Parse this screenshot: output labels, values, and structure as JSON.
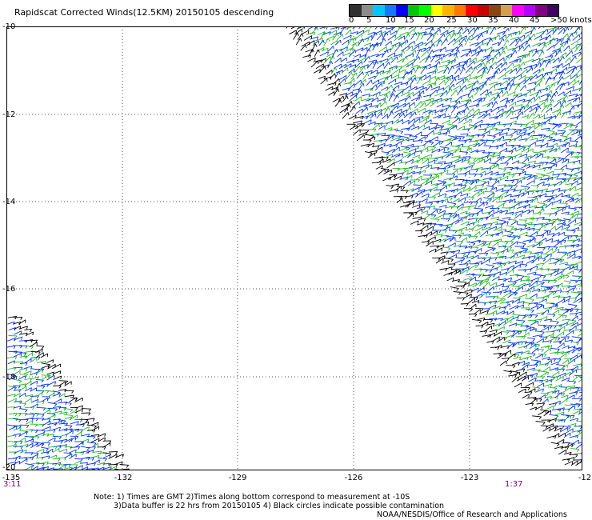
{
  "title": "Rapidscat Corrected Winds(12.5KM) 20150105 descending",
  "colorbar": {
    "colors": [
      "#303030",
      "#8c8c8c",
      "#00c8ff",
      "#1478ff",
      "#0000ff",
      "#00c800",
      "#00ff00",
      "#ffff00",
      "#ffb400",
      "#ff7800",
      "#ff0000",
      "#c80000",
      "#8b4513",
      "#d2a050",
      "#ff00ff",
      "#b400ff",
      "#800080",
      "#400060"
    ],
    "labels": [
      "0",
      "5",
      "10",
      "15",
      "20",
      "25",
      "30",
      "35",
      "40",
      "45",
      ">50 knots"
    ]
  },
  "lat_labels": [
    "-10",
    "-12",
    "-14",
    "-16",
    "-18",
    "-20"
  ],
  "lon_labels": [
    "-135",
    "-132",
    "-129",
    "-126",
    "-123",
    "-12"
  ],
  "time_labels": {
    "left": "3:11",
    "right": "1:37"
  },
  "notes": {
    "line1": "Note: 1) Times are GMT 2)Times along bottom correspond to measurement at -10S",
    "line2": "3)Data buffer is 22 hrs from 20150105 4) Black circles indicate possible contamination",
    "line3": "NOAA/NESDIS/Office of Research and Applications"
  },
  "colors": {
    "blue": "#0033ff",
    "green": "#22bb22",
    "black": "#000000",
    "grid": "#555555"
  }
}
